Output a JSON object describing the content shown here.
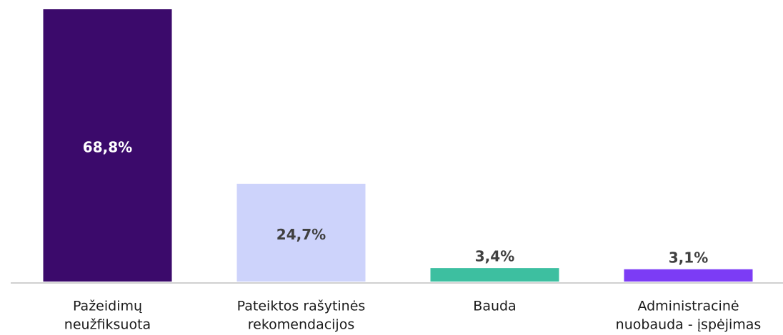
{
  "chart_data": {
    "type": "bar",
    "categories": [
      [
        "Pažeidimų",
        "neužfiksuota"
      ],
      [
        "Pateiktos rašytinės",
        "rekomendacijos"
      ],
      [
        "Bauda"
      ],
      [
        "Administracinė",
        "nuobauda - įspėjimas"
      ]
    ],
    "values": [
      68.8,
      24.7,
      3.4,
      3.1
    ],
    "value_labels": [
      "68,8%",
      "24,7%",
      "3,4%",
      "3,1%"
    ],
    "colors": [
      "#3b0a6b",
      "#cdd3fb",
      "#3dbfa0",
      "#7c3cf5"
    ]
  }
}
